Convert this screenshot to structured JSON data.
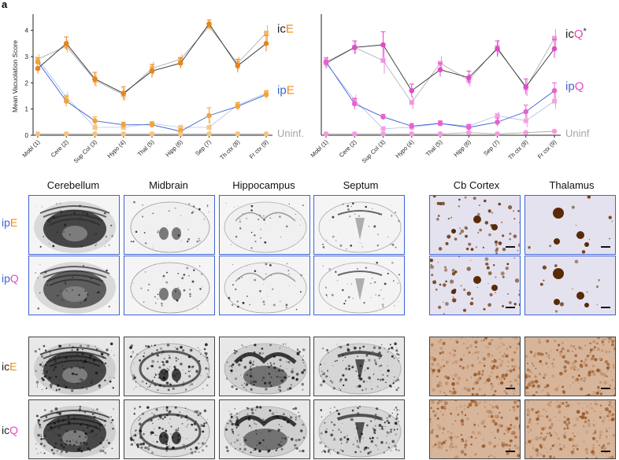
{
  "figure": {
    "corner_letter": "a"
  },
  "colors": {
    "ic_line": "#333333",
    "ipE": "#f2a33a",
    "ipE_dark": "#e6861a",
    "ipQ": "#ec5fd0",
    "ip_blue": "#3a5fd0",
    "uninf": "#a6a6a6",
    "label_blue": "#3f63d8",
    "label_orange": "#f08a12",
    "label_pink": "#e846c8"
  },
  "chart_data": [
    {
      "type": "line",
      "ylabel": "Mean Vacuolation Score",
      "xlabel": "",
      "ylim": [
        0,
        4.5
      ],
      "yticks": [
        0,
        1,
        2,
        3,
        4
      ],
      "categories": [
        "Mobl (1)",
        "Cere (2)",
        "Sup Col (3)",
        "Hypo (4)",
        "Thal (5)",
        "Hipp (6)",
        "Sep (7)",
        "Th ctx (8)",
        "Fr ctx (9)"
      ],
      "series": [
        {
          "name": "icE",
          "prefix": "ic",
          "suffix": "E",
          "suffix_color": "#f08a12",
          "prefix_color": "#222222",
          "values": [
            2.55,
            3.5,
            2.15,
            1.6,
            2.45,
            2.75,
            4.25,
            2.65,
            3.5
          ],
          "err": [
            0.2,
            0.25,
            0.25,
            0.25,
            0.25,
            0.2,
            0.15,
            0.25,
            0.3
          ],
          "values2": [
            2.9,
            3.4,
            2.1,
            1.55,
            2.55,
            2.9,
            4.15,
            2.75,
            3.9
          ],
          "color": "#e6861a",
          "color2": "#f3b560",
          "line": "#333333"
        },
        {
          "name": "ipE",
          "prefix": "ip",
          "suffix": "E",
          "suffix_color": "#f08a12",
          "prefix_color": "#3f63d8",
          "values": [
            2.8,
            1.3,
            0.55,
            0.4,
            0.4,
            0.15,
            0.75,
            1.1,
            1.55
          ],
          "err": [
            0.15,
            0.2,
            0.15,
            0.1,
            0.1,
            0.1,
            0.3,
            0.15,
            0.15
          ],
          "values2": [
            2.9,
            1.45,
            0.3,
            0.3,
            0.45,
            0.3,
            0.3,
            1.15,
            1.6
          ],
          "color": "#f2a33a",
          "color2": "#f6c27a",
          "line": "#3a5fd0"
        },
        {
          "name": "Uninf.",
          "prefix": "Uninf.",
          "suffix": "",
          "prefix_color": "#a6a6a6",
          "values": [
            0.05,
            0.05,
            0.05,
            0.05,
            0.05,
            0.05,
            0.05,
            0.05,
            0.05
          ],
          "err": [
            0.05,
            0.05,
            0.05,
            0.05,
            0.05,
            0.05,
            0.05,
            0.05,
            0.05
          ],
          "color": "#f5c47f",
          "line": "#a6a6a6"
        }
      ]
    },
    {
      "type": "line",
      "ylabel": "",
      "xlabel": "",
      "ylim": [
        0,
        4.5
      ],
      "categories": [
        "Mobl (1)",
        "Cere (2)",
        "Sup Col (3)",
        "Hypo (4)",
        "Thal (5)",
        "Hipp (6)",
        "Sep (7)",
        "Th ctx (8)",
        "Fr ctx (9)"
      ],
      "series": [
        {
          "name": "icQ*",
          "prefix": "ic",
          "suffix": "Q",
          "star": "*",
          "suffix_color": "#e846c8",
          "prefix_color": "#222222",
          "values": [
            2.75,
            3.35,
            3.45,
            1.7,
            2.5,
            2.2,
            3.3,
            1.85,
            3.3
          ],
          "err": [
            0.2,
            0.25,
            0.5,
            0.25,
            0.25,
            0.25,
            0.3,
            0.3,
            0.35
          ],
          "values2": [
            2.8,
            3.35,
            2.85,
            1.25,
            2.75,
            2.1,
            3.35,
            1.8,
            3.7
          ],
          "color": "#e24ac9",
          "color2": "#ee8ee0",
          "line": "#333333"
        },
        {
          "name": "ipQ",
          "prefix": "ip",
          "suffix": "Q",
          "suffix_color": "#e846c8",
          "prefix_color": "#3f63d8",
          "values": [
            2.8,
            1.2,
            0.7,
            0.35,
            0.45,
            0.3,
            0.5,
            0.9,
            1.7
          ],
          "err": [
            0.15,
            0.2,
            0.1,
            0.1,
            0.1,
            0.1,
            0.15,
            0.25,
            0.3
          ],
          "values2": [
            2.75,
            1.35,
            0.25,
            0.3,
            0.45,
            0.35,
            0.75,
            0.55,
            1.3
          ],
          "color": "#ec5fd0",
          "color2": "#f29ce2",
          "line": "#3a5fd0"
        },
        {
          "name": "Uninf",
          "prefix": "Uninf",
          "suffix": "",
          "prefix_color": "#a6a6a6",
          "values": [
            0.05,
            0.05,
            0.05,
            0.05,
            0.05,
            0.1,
            0.05,
            0.1,
            0.15
          ],
          "err": [
            0.05,
            0.05,
            0.05,
            0.05,
            0.05,
            0.05,
            0.05,
            0.05,
            0.05
          ],
          "color": "#f29ce2",
          "line": "#a6a6a6"
        }
      ]
    }
  ],
  "sections": {
    "regions": [
      "Cerebellum",
      "Midbrain",
      "Hippocampus",
      "Septum"
    ],
    "histology": [
      "Cb Cortex",
      "Thalamus"
    ],
    "rows": [
      {
        "prefix": "ip",
        "suffix": "E",
        "prefix_color": "#3f63d8",
        "suffix_color": "#f08a12",
        "frame": "blue"
      },
      {
        "prefix": "ip",
        "suffix": "Q",
        "prefix_color": "#3f63d8",
        "suffix_color": "#e846c8",
        "frame": "blue"
      },
      {
        "prefix": "ic",
        "suffix": "E",
        "prefix_color": "#222222",
        "suffix_color": "#f08a12",
        "frame": "black"
      },
      {
        "prefix": "ic",
        "suffix": "Q",
        "prefix_color": "#222222",
        "suffix_color": "#e846c8",
        "frame": "black"
      }
    ]
  }
}
